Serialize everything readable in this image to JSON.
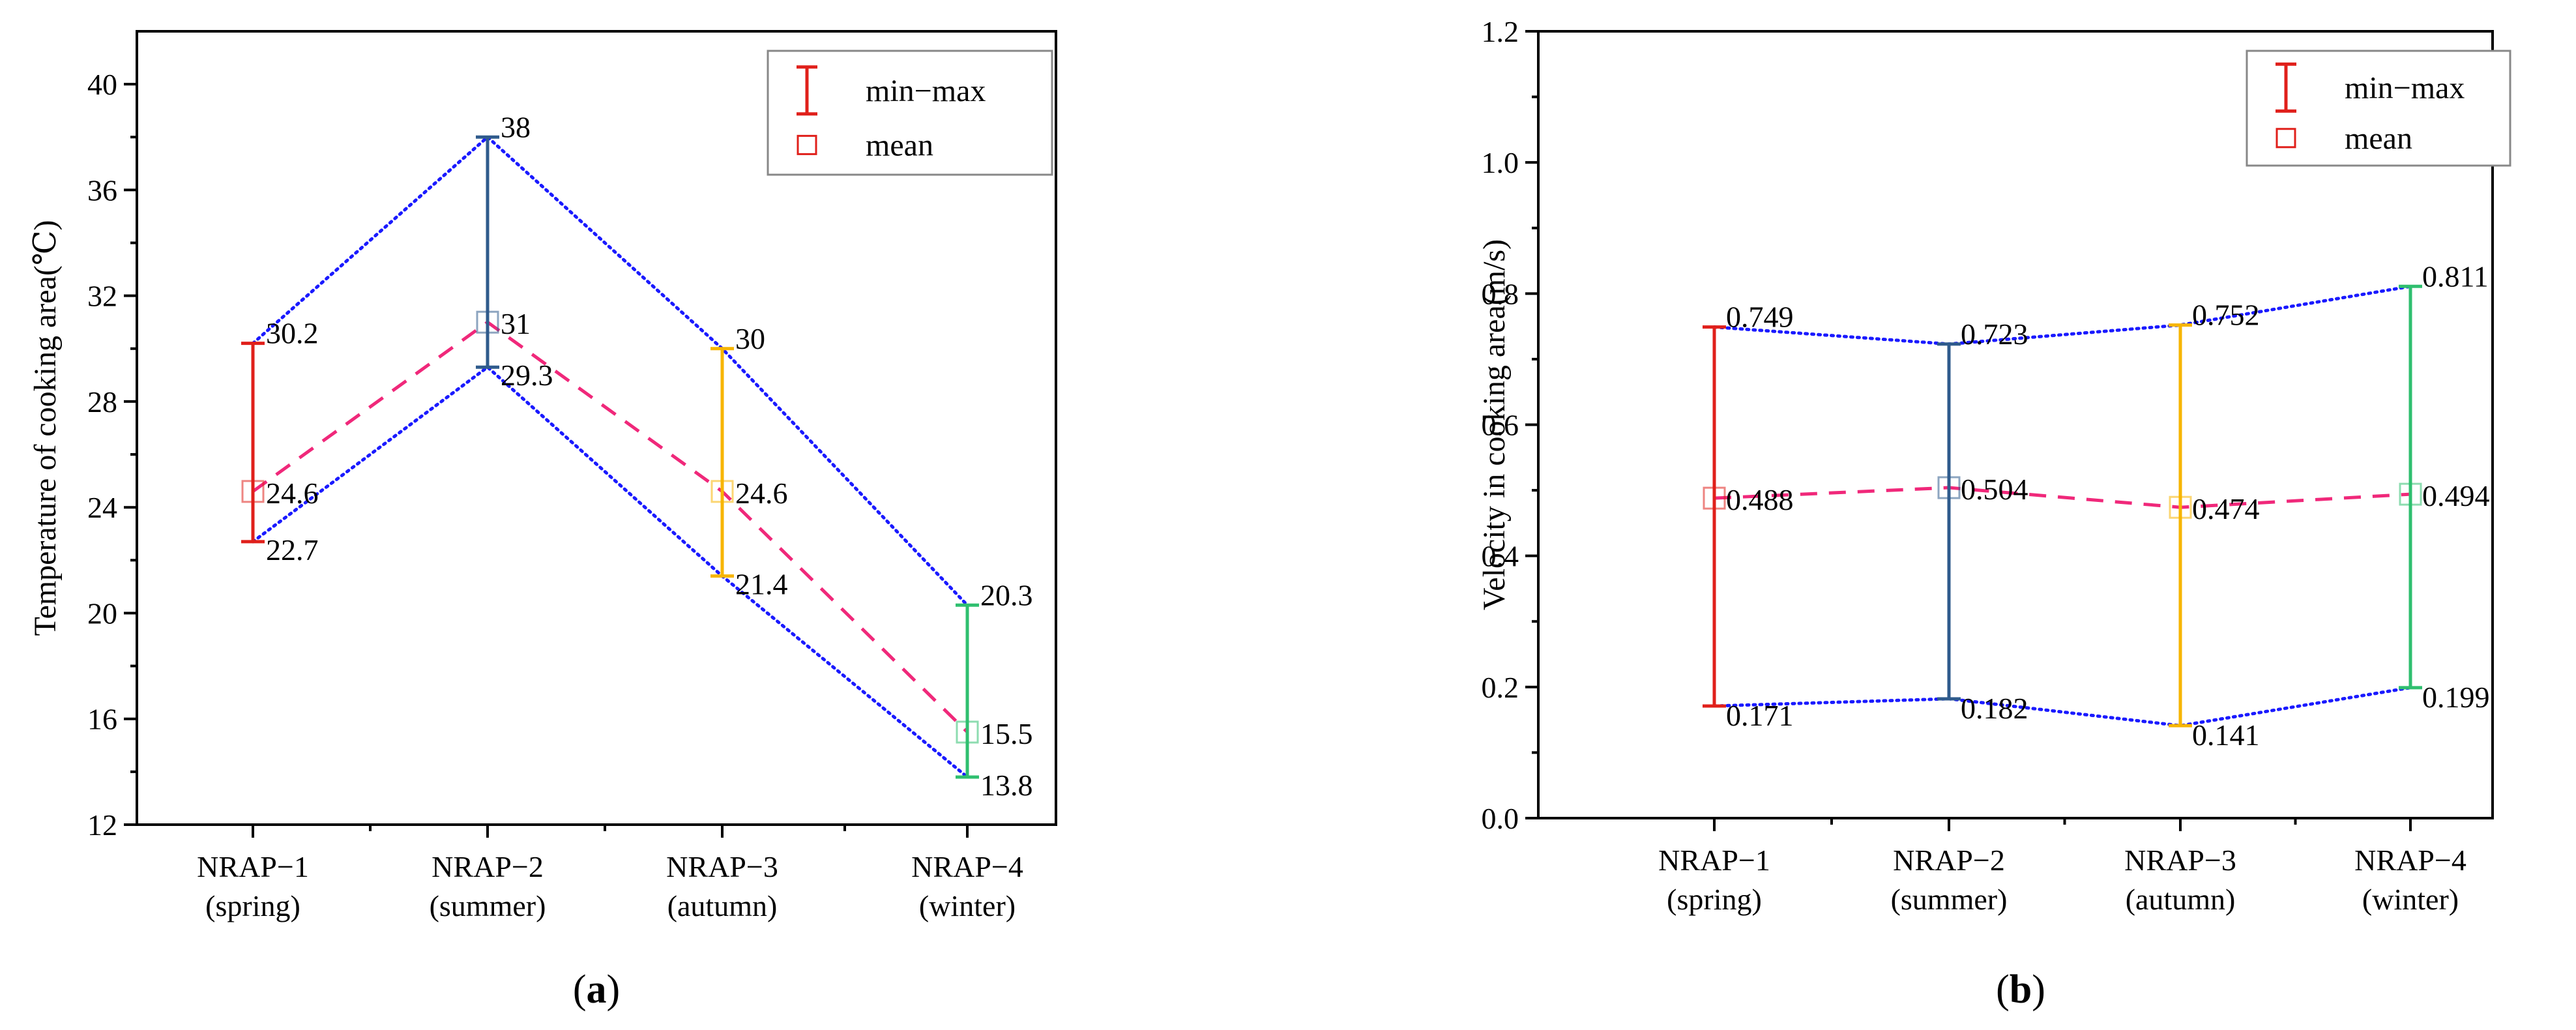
{
  "chart_data": [
    {
      "type": "scatter",
      "panel_label": "a",
      "title": "",
      "xlabel": "",
      "ylabel": "Temperature of cooking area(℃)",
      "ylim": [
        12,
        42
      ],
      "yticks": [
        12,
        16,
        20,
        24,
        28,
        32,
        36,
        40
      ],
      "categories": [
        {
          "line1": "NRAP−1",
          "line2": "(spring)",
          "color": "#e0201b"
        },
        {
          "line1": "NRAP−2",
          "line2": "(summer)",
          "color": "#2f5b8c"
        },
        {
          "line1": "NRAP−3",
          "line2": "(autumn)",
          "color": "#f7b500"
        },
        {
          "line1": "NRAP−4",
          "line2": "(winter)",
          "color": "#2fbf6f"
        }
      ],
      "series": [
        {
          "name": "max",
          "values": [
            30.2,
            38,
            30,
            20.3
          ],
          "labels": [
            "30.2",
            "38",
            "30",
            "20.3"
          ]
        },
        {
          "name": "mean",
          "values": [
            24.6,
            31,
            24.6,
            15.5
          ],
          "labels": [
            "24.6",
            "31",
            "24.6",
            "15.5"
          ]
        },
        {
          "name": "min",
          "values": [
            22.7,
            29.3,
            21.4,
            13.8
          ],
          "labels": [
            "22.7",
            "29.3",
            "21.4",
            "13.8"
          ]
        }
      ],
      "legend": {
        "position": "top-right",
        "items": [
          "min−max",
          "mean"
        ]
      }
    },
    {
      "type": "scatter",
      "panel_label": "b",
      "title": "",
      "xlabel": "",
      "ylabel": "Velocity in cooking area(m/s)",
      "ylim": [
        0,
        1.2
      ],
      "yticks": [
        0.0,
        0.2,
        0.4,
        0.6,
        0.8,
        1.0,
        1.2
      ],
      "ytick_labels": [
        "0.0",
        "0.2",
        "0.4",
        "0.6",
        "0.8",
        "1.0",
        "1.2"
      ],
      "categories": [
        {
          "line1": "NRAP−1",
          "line2": "(spring)",
          "color": "#e0201b"
        },
        {
          "line1": "NRAP−2",
          "line2": "(summer)",
          "color": "#2f5b8c"
        },
        {
          "line1": "NRAP−3",
          "line2": "(autumn)",
          "color": "#f7b500"
        },
        {
          "line1": "NRAP−4",
          "line2": "(winter)",
          "color": "#2fbf6f"
        }
      ],
      "series": [
        {
          "name": "max",
          "values": [
            0.749,
            0.723,
            0.752,
            0.811
          ],
          "labels": [
            "0.749",
            "0.723",
            "0.752",
            "0.811"
          ]
        },
        {
          "name": "mean",
          "values": [
            0.488,
            0.504,
            0.474,
            0.494
          ],
          "labels": [
            "0.488",
            "0.504",
            "0.474",
            "0.494"
          ]
        },
        {
          "name": "min",
          "values": [
            0.171,
            0.182,
            0.141,
            0.199
          ],
          "labels": [
            "0.171",
            "0.182",
            "0.141",
            "0.199"
          ]
        }
      ],
      "legend": {
        "position": "top-right",
        "items": [
          "min−max",
          "mean"
        ]
      }
    }
  ],
  "colors": {
    "minmax_legend": "#e0201b",
    "mean_legend": "#e0201b",
    "mean_line": "#f0287a",
    "range_line": "#1a1aff",
    "mean_marker_fill": "rgba(255,255,255,0)"
  }
}
